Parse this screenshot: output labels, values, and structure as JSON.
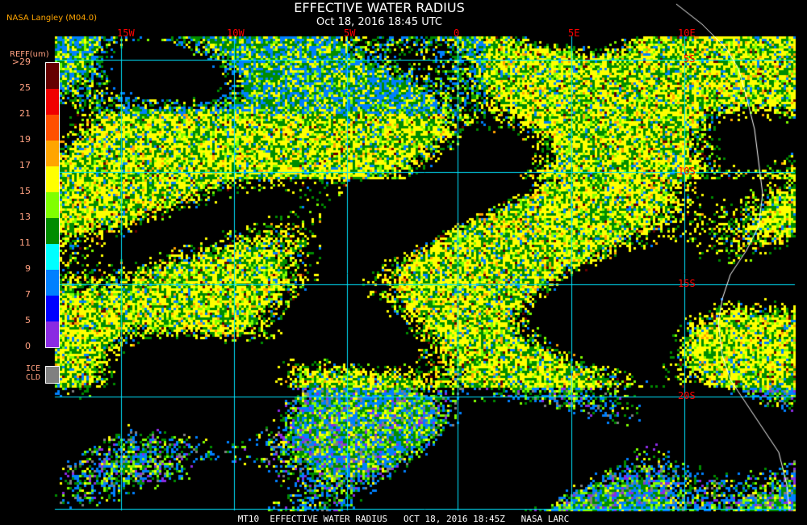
{
  "header": {
    "title": "EFFECTIVE WATER RADIUS",
    "subtitle": "Oct 18, 2016 18:45 UTC",
    "organization": "NASA Langley (M04.0)"
  },
  "map": {
    "lon_labels": [
      "15W",
      "10W",
      "5W",
      "0",
      "5E",
      "10E"
    ],
    "lat_labels": [
      "5S",
      "10S",
      "15S",
      "20S"
    ],
    "grid_color": "#00e5ff",
    "coastline_color": "#ffffff",
    "background_color": "#000000"
  },
  "legend": {
    "unit_label": "REFF(um)",
    "ticks": [
      ">29",
      "25",
      "21",
      "19",
      "17",
      "15",
      "13",
      "11",
      "9",
      "7",
      "5",
      "0"
    ],
    "colors": [
      "#660000",
      "#f00000",
      "#ff5000",
      "#ffa500",
      "#ffff00",
      "#80ff00",
      "#008c00",
      "#00ffff",
      "#0080ff",
      "#0000ff",
      "#8a2be2"
    ],
    "ice_label_1": "ICE",
    "ice_label_2": "CLD",
    "ice_color": "#808080"
  },
  "footer": "MT10  EFFECTIVE WATER RADIUS   OCT 18, 2016 18:45Z   NASA LARC"
}
